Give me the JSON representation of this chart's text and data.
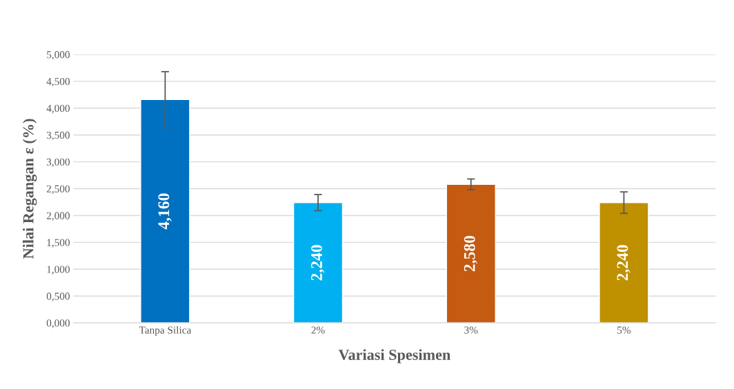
{
  "chart_data": {
    "type": "bar",
    "xlabel": "Variasi Spesimen",
    "ylabel": "Nilai Regangan ε (%)",
    "categories": [
      "Tanpa Silica",
      "2%",
      "3%",
      "5%"
    ],
    "values": [
      4.16,
      2.24,
      2.58,
      2.24
    ],
    "colors": [
      "#0070c0",
      "#00b0f0",
      "#c55a11",
      "#bf9000"
    ],
    "errors": [
      0.52,
      0.15,
      0.1,
      0.2
    ],
    "value_labels": [
      "4,160",
      "2,240",
      "2,580",
      "2,240"
    ],
    "ylim": [
      0,
      5
    ],
    "yticks": [
      {
        "value": 0,
        "label": "0,000"
      },
      {
        "value": 0.5,
        "label": "0,500"
      },
      {
        "value": 1,
        "label": "1,000"
      },
      {
        "value": 1.5,
        "label": "1,500"
      },
      {
        "value": 2,
        "label": "2,000"
      },
      {
        "value": 2.5,
        "label": "2,500"
      },
      {
        "value": 3,
        "label": "3,000"
      },
      {
        "value": 3.5,
        "label": "3,500"
      },
      {
        "value": 4,
        "label": "4,000"
      },
      {
        "value": 4.5,
        "label": "4,500"
      },
      {
        "value": 5,
        "label": "5,000"
      }
    ],
    "grid": "y",
    "legend": false
  }
}
